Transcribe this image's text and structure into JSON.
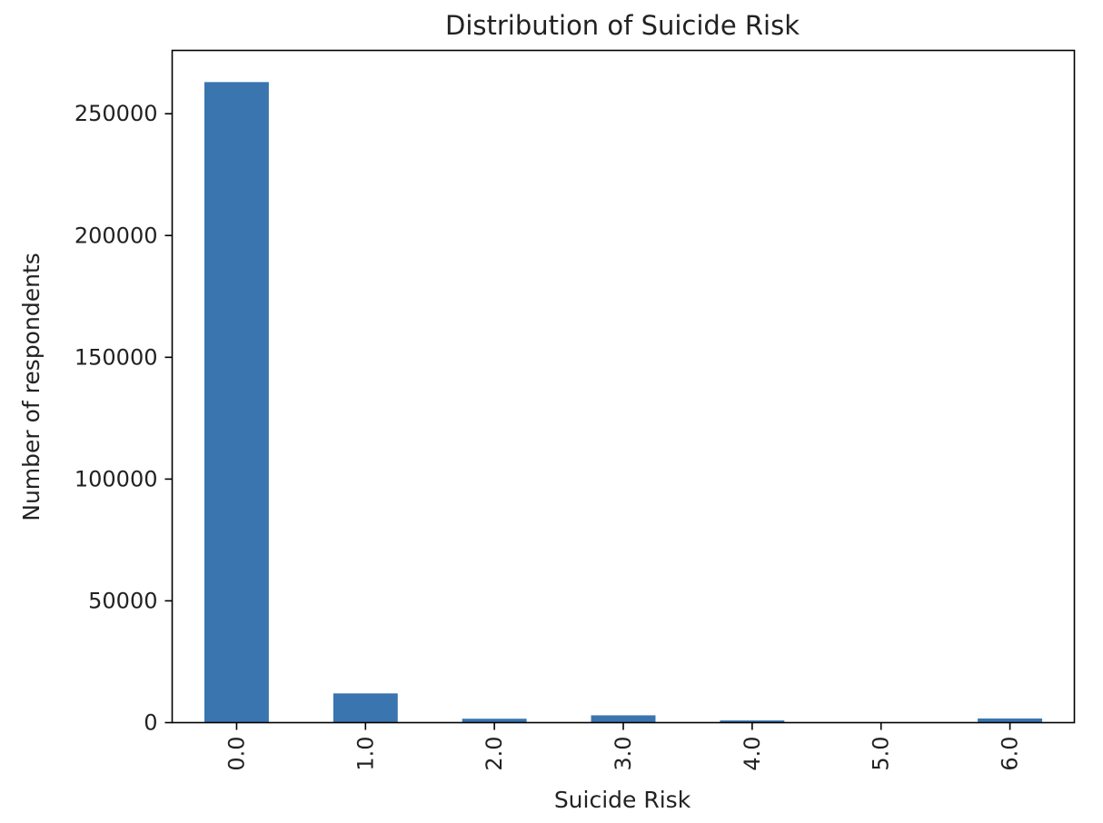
{
  "chart_data": {
    "type": "bar",
    "title": "Distribution of Suicide Risk",
    "xlabel": "Suicide Risk",
    "ylabel": "Number of respondents",
    "categories": [
      "0.0",
      "1.0",
      "2.0",
      "3.0",
      "4.0",
      "5.0",
      "6.0"
    ],
    "values": [
      263000,
      12000,
      1600,
      3000,
      900,
      150,
      1700
    ],
    "ylim": [
      0,
      276000
    ],
    "yticks": [
      0,
      50000,
      100000,
      150000,
      200000,
      250000
    ],
    "ytick_labels": [
      "0",
      "50000",
      "100000",
      "150000",
      "200000",
      "250000"
    ],
    "bar_color": "#3a75af",
    "grid": false,
    "legend": "none"
  }
}
